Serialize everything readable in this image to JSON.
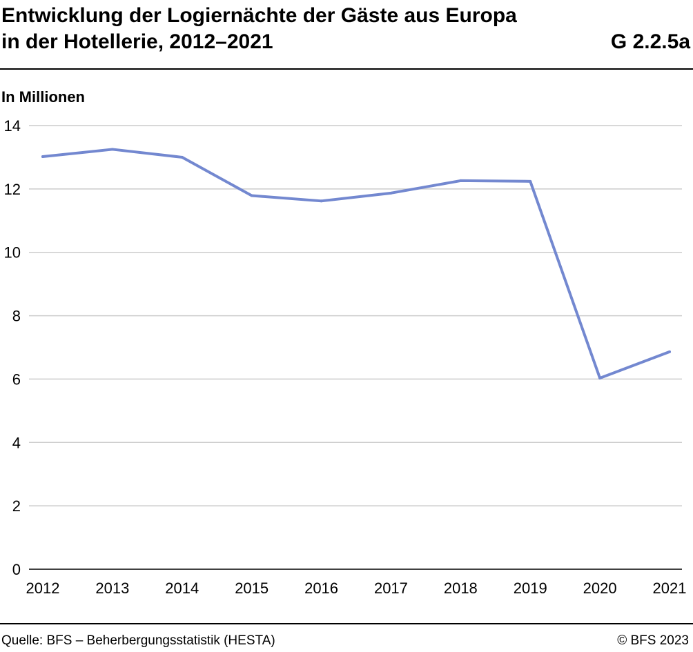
{
  "header": {
    "title_line1": "Entwicklung der Logiernächte der Gäste aus Europa",
    "title_line2": "in der Hotellerie, 2012–2021",
    "chart_id": "G 2.2.5a"
  },
  "footer": {
    "source": "Quelle: BFS – Beherbergungsstatistik (HESTA)",
    "copyright": "© BFS 2023"
  },
  "chart_data": {
    "type": "line",
    "title": "Entwicklung der Logiernächte der Gäste aus Europa in der Hotellerie, 2012–2021",
    "ylabel": "In Millionen",
    "xlabel": "",
    "x": [
      "2012",
      "2013",
      "2014",
      "2015",
      "2016",
      "2017",
      "2018",
      "2019",
      "2020",
      "2021"
    ],
    "series": [
      {
        "values": [
          13.02,
          13.25,
          13.0,
          11.79,
          11.62,
          11.87,
          12.26,
          12.24,
          6.03,
          6.86
        ]
      }
    ],
    "ylim": [
      0,
      14
    ],
    "yticks": [
      0,
      2,
      4,
      6,
      8,
      10,
      12,
      14
    ],
    "grid": true,
    "line_color": "#7388d0",
    "grid_color": "#cccccc"
  }
}
